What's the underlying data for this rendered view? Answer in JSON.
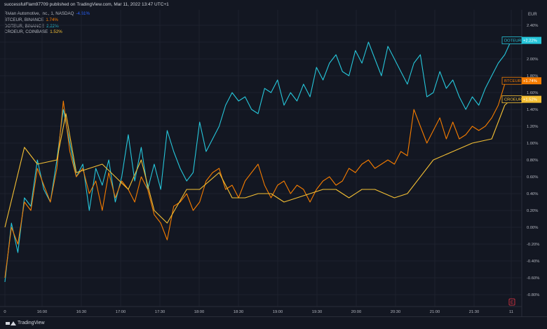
{
  "header": {
    "published_by": "successfulFlam97709 published on TradingView.com, Mar 11, 2022 13:47 UTC+1"
  },
  "legend": [
    {
      "name": "Rivian Automotive, Inc., 1, NASDAQ",
      "value": "-4.61%",
      "color": "#2962ff"
    },
    {
      "name": "BTCEUR, BINANCE",
      "value": "1.74%",
      "color": "#f57c00"
    },
    {
      "name": "DOTEUR, BINANCE",
      "value": "2.22%",
      "color": "#26c6da"
    },
    {
      "name": "CROEUR, COINBASE",
      "value": "1.52%",
      "color": "#f5c034"
    }
  ],
  "currency_label": "EUR",
  "footer": {
    "brand": "TradingView"
  },
  "event_marker": "E",
  "chart_data": {
    "type": "line",
    "x_ticks": [
      "0",
      "16:00",
      "16:30",
      "17:00",
      "17:30",
      "18:00",
      "18:30",
      "19:00",
      "19:30",
      "20:00",
      "20:30",
      "21:00",
      "21:30",
      "11"
    ],
    "y_ticks": [
      "2.40%",
      "2.20%",
      "2.00%",
      "1.80%",
      "1.60%",
      "1.40%",
      "1.20%",
      "1.00%",
      "0.80%",
      "0.60%",
      "0.40%",
      "0.20%",
      "0.00%",
      "-0.20%",
      "-0.40%",
      "-0.60%",
      "-0.80%"
    ],
    "y_unit": "%",
    "ylim": [
      -0.9,
      2.5
    ],
    "grid": true,
    "series": [
      {
        "name": "DOTEUR",
        "color": "#26c6da",
        "last": "+2.22%",
        "x": [
          0,
          5,
          10,
          15,
          20,
          25,
          30,
          35,
          40,
          45,
          50,
          55,
          60,
          65,
          70,
          75,
          80,
          85,
          90,
          95,
          100,
          105,
          110,
          115,
          120,
          125,
          130,
          135,
          140,
          145,
          150,
          155,
          160,
          165,
          170,
          175,
          180,
          185,
          190,
          195,
          200,
          205,
          210,
          215,
          220,
          225,
          230,
          235,
          240,
          245,
          250,
          255,
          260,
          265,
          270,
          275,
          280,
          285,
          290,
          295,
          300,
          305,
          310,
          315,
          320,
          325,
          330,
          335,
          340,
          345,
          350,
          355,
          360,
          365,
          370,
          375,
          380,
          385,
          390
        ],
        "y": [
          -0.65,
          0.05,
          -0.3,
          0.35,
          0.25,
          0.8,
          0.45,
          0.3,
          0.8,
          1.4,
          1.0,
          0.6,
          0.75,
          0.2,
          0.7,
          0.5,
          0.8,
          0.3,
          0.6,
          1.1,
          0.55,
          0.95,
          0.45,
          0.75,
          0.45,
          1.15,
          0.9,
          0.7,
          0.55,
          0.65,
          1.25,
          0.9,
          1.05,
          1.2,
          1.45,
          1.6,
          1.5,
          1.55,
          1.4,
          1.35,
          1.65,
          1.6,
          1.75,
          1.45,
          1.6,
          1.5,
          1.7,
          1.55,
          1.9,
          1.75,
          1.95,
          2.05,
          1.85,
          1.8,
          2.1,
          1.95,
          2.2,
          2.0,
          1.8,
          2.15,
          2.0,
          1.85,
          1.7,
          1.95,
          2.05,
          1.55,
          1.6,
          1.85,
          1.65,
          1.75,
          1.55,
          1.4,
          1.55,
          1.45,
          1.65,
          1.8,
          1.95,
          2.05,
          2.22
        ]
      },
      {
        "name": "BTCEUR",
        "color": "#f57c00",
        "last": "+1.74%",
        "x": [
          0,
          5,
          10,
          15,
          20,
          25,
          30,
          35,
          40,
          45,
          50,
          55,
          60,
          65,
          70,
          75,
          80,
          85,
          90,
          95,
          100,
          105,
          110,
          115,
          120,
          125,
          130,
          135,
          140,
          145,
          150,
          155,
          160,
          165,
          170,
          175,
          180,
          185,
          190,
          195,
          200,
          205,
          210,
          215,
          220,
          225,
          230,
          235,
          240,
          245,
          250,
          255,
          260,
          265,
          270,
          275,
          280,
          285,
          290,
          295,
          300,
          305,
          310,
          315,
          320,
          325,
          330,
          335,
          340,
          345,
          350,
          355,
          360,
          365,
          370,
          375,
          380,
          385,
          390
        ],
        "y": [
          -0.6,
          0.0,
          -0.2,
          0.3,
          0.2,
          0.7,
          0.5,
          0.3,
          0.7,
          1.5,
          0.9,
          0.6,
          0.7,
          0.4,
          0.55,
          0.2,
          0.65,
          0.35,
          0.55,
          0.45,
          0.3,
          0.6,
          0.45,
          0.15,
          0.05,
          -0.15,
          0.25,
          0.3,
          0.4,
          0.2,
          0.3,
          0.55,
          0.65,
          0.7,
          0.45,
          0.5,
          0.35,
          0.55,
          0.65,
          0.75,
          0.5,
          0.35,
          0.5,
          0.55,
          0.4,
          0.5,
          0.45,
          0.3,
          0.45,
          0.55,
          0.6,
          0.5,
          0.55,
          0.7,
          0.65,
          0.75,
          0.8,
          0.7,
          0.75,
          0.8,
          0.75,
          0.9,
          0.85,
          1.4,
          1.2,
          1.0,
          1.15,
          1.3,
          1.05,
          1.25,
          1.05,
          1.1,
          1.2,
          1.15,
          1.2,
          1.3,
          1.45,
          1.7,
          1.74
        ]
      },
      {
        "name": "CROEUR",
        "color": "#f5c034",
        "last": "+1.52%",
        "x": [
          0,
          15,
          25,
          40,
          47,
          55,
          65,
          75,
          85,
          95,
          105,
          115,
          125,
          140,
          150,
          165,
          175,
          185,
          195,
          205,
          215,
          225,
          235,
          245,
          255,
          265,
          275,
          285,
          300,
          310,
          330,
          345,
          360,
          375,
          385,
          390
        ],
        "y": [
          0.0,
          0.95,
          0.75,
          0.8,
          1.35,
          0.65,
          0.7,
          0.75,
          0.6,
          0.45,
          0.8,
          0.2,
          0.05,
          0.45,
          0.45,
          0.65,
          0.35,
          0.35,
          0.4,
          0.4,
          0.3,
          0.35,
          0.4,
          0.45,
          0.45,
          0.35,
          0.45,
          0.45,
          0.35,
          0.4,
          0.8,
          0.9,
          1.0,
          1.05,
          1.45,
          1.52
        ]
      }
    ]
  }
}
